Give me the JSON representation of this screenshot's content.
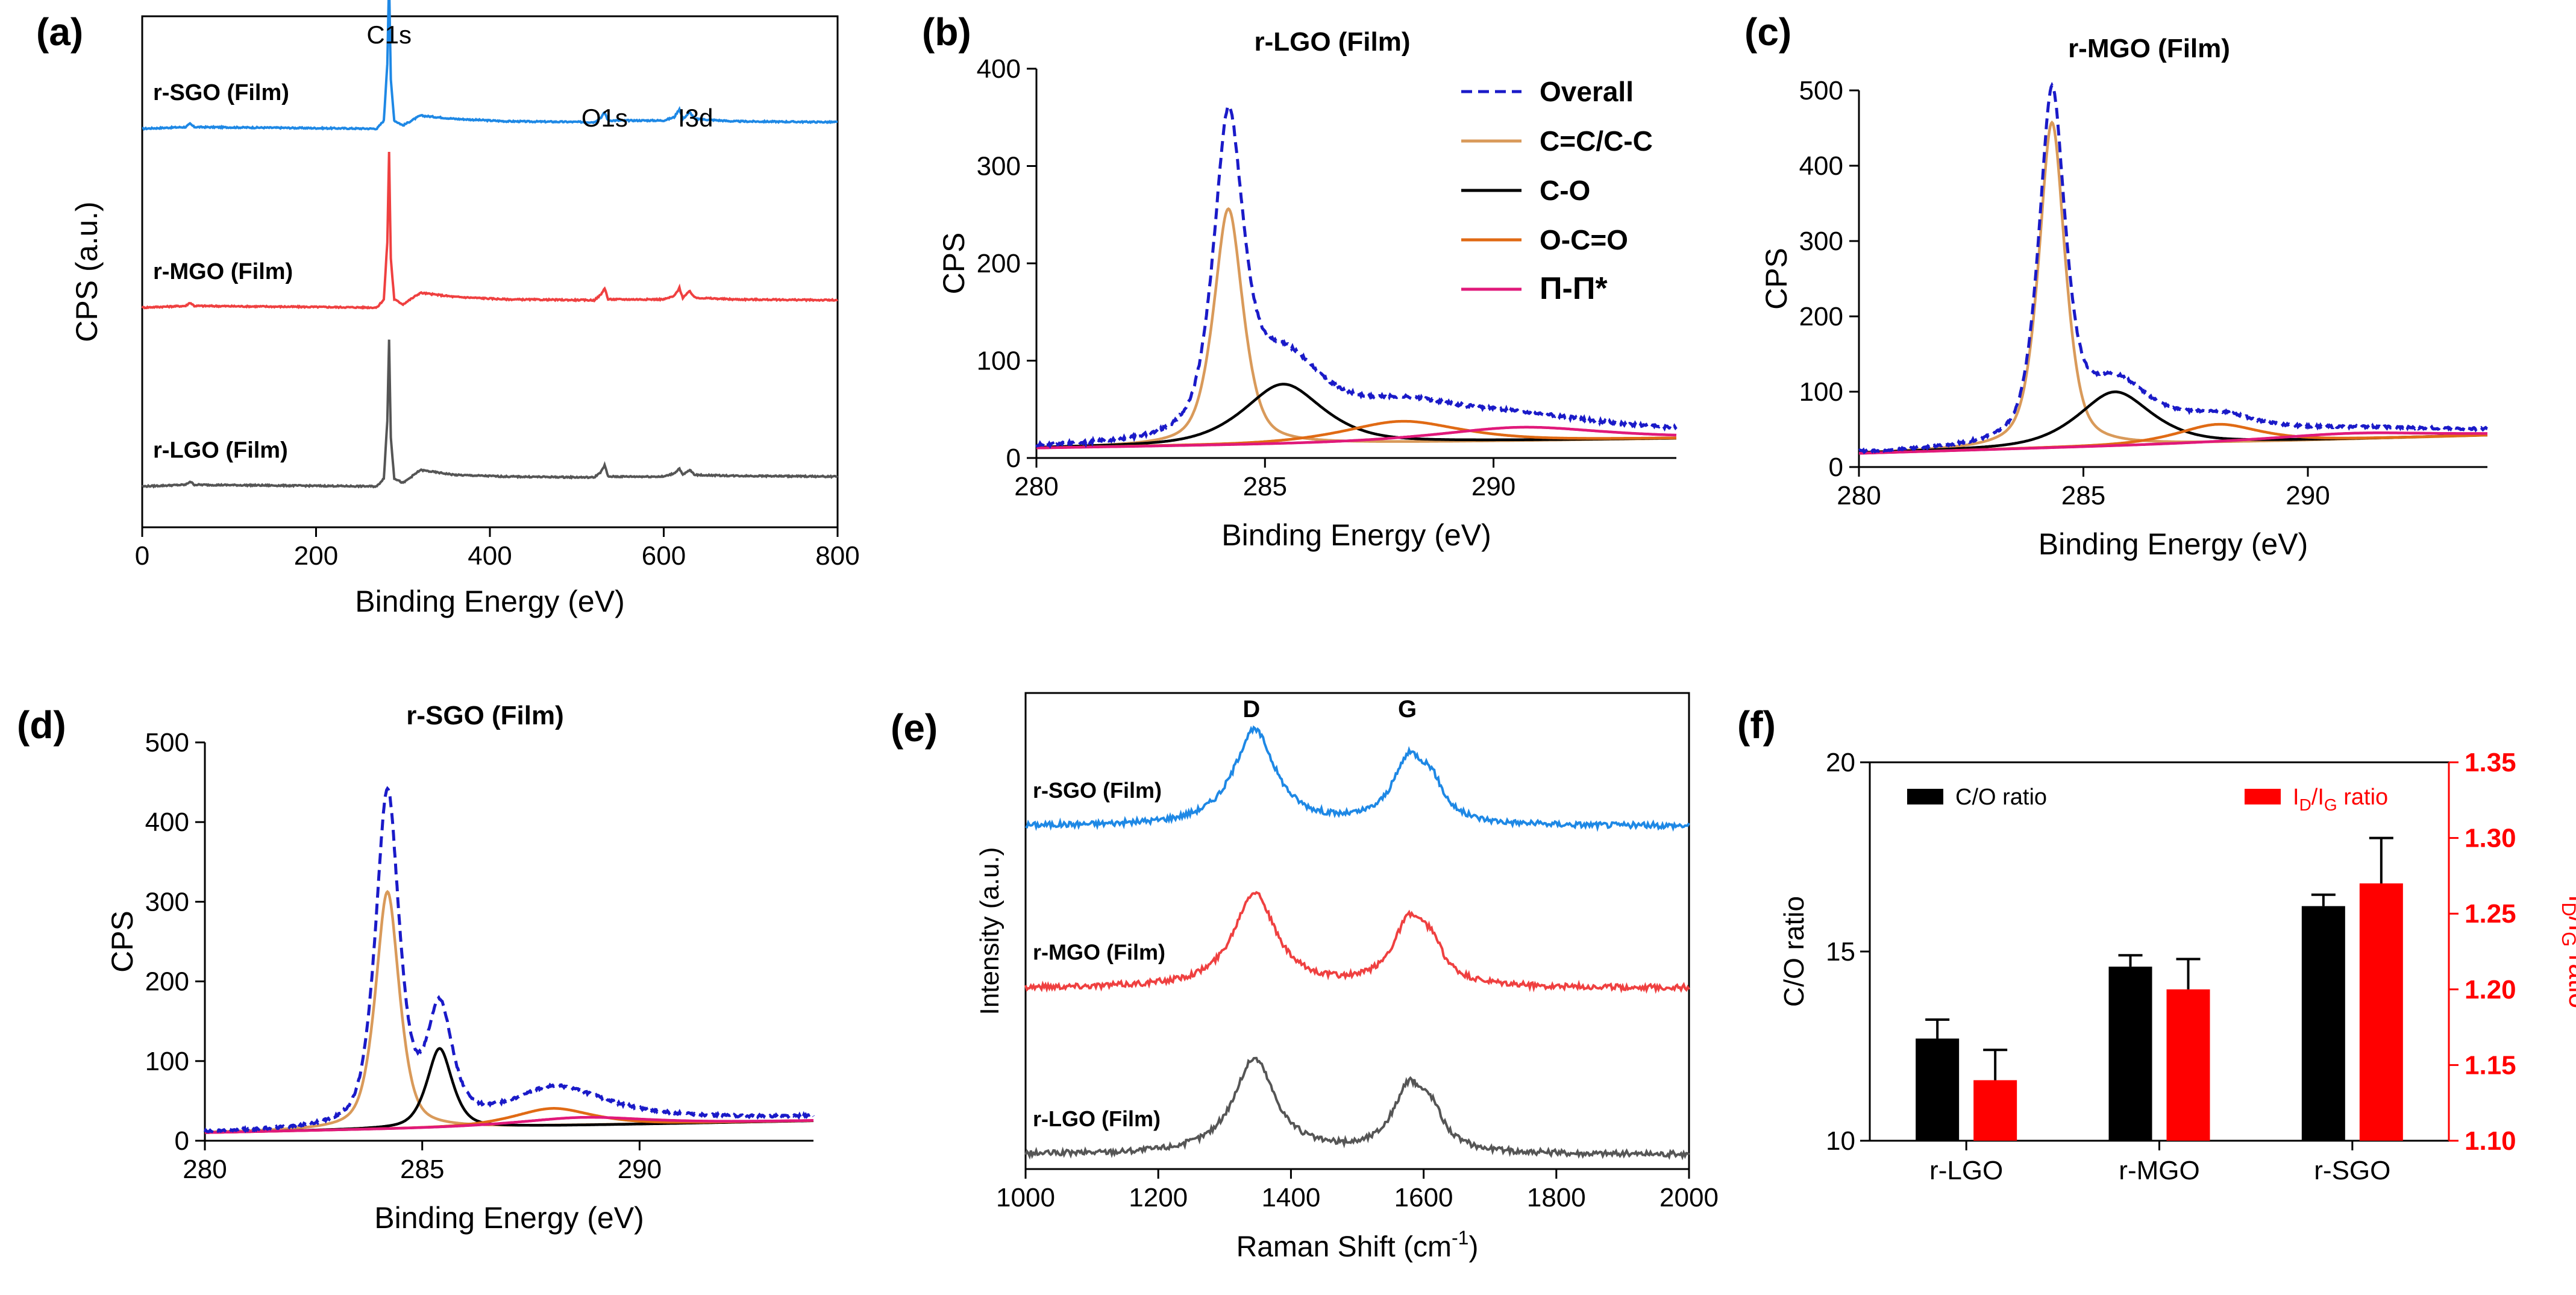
{
  "colors": {
    "blue": "#1e88e5",
    "red": "#ef4040",
    "gray": "#555555",
    "dashed": "#1a1ac8",
    "cc": "#d99a5a",
    "co": "#000000",
    "oco": "#e06a14",
    "pipi": "#e0197a",
    "bar_red": "#ff0000"
  },
  "chart_data": [
    {
      "id": "a",
      "panel_label": "(a)",
      "type": "line",
      "title": "",
      "xlabel": "Binding Energy (eV)",
      "ylabel": "CPS (a.u.)",
      "xlim": [
        0,
        800
      ],
      "xticks": [
        0,
        200,
        400,
        600,
        800
      ],
      "peak_labels": [
        {
          "text": "C1s",
          "x": 284
        },
        {
          "text": "O1s",
          "x": 532
        },
        {
          "text": "I3d",
          "x": 620
        }
      ],
      "series": [
        {
          "name": "r-SGO (Film)",
          "color": "blue",
          "offset": 0.78,
          "points": [
            [
              0,
              0.0
            ],
            [
              50,
              0.01
            ],
            [
              55,
              0.03
            ],
            [
              60,
              0.01
            ],
            [
              270,
              0.0
            ],
            [
              278,
              0.05
            ],
            [
              282,
              0.4
            ],
            [
              284,
              0.92
            ],
            [
              286,
              0.3
            ],
            [
              290,
              0.05
            ],
            [
              300,
              0.02
            ],
            [
              320,
              0.08
            ],
            [
              360,
              0.06
            ],
            [
              420,
              0.045
            ],
            [
              520,
              0.04
            ],
            [
              528,
              0.07
            ],
            [
              532,
              0.1
            ],
            [
              536,
              0.05
            ],
            [
              600,
              0.05
            ],
            [
              612,
              0.07
            ],
            [
              618,
              0.12
            ],
            [
              622,
              0.06
            ],
            [
              630,
              0.1
            ],
            [
              636,
              0.06
            ],
            [
              680,
              0.045
            ],
            [
              800,
              0.04
            ]
          ]
        },
        {
          "name": "r-MGO (Film)",
          "color": "red",
          "offset": 0.43,
          "points": [
            [
              0,
              0.0
            ],
            [
              50,
              0.01
            ],
            [
              55,
              0.03
            ],
            [
              60,
              0.01
            ],
            [
              270,
              0.0
            ],
            [
              278,
              0.05
            ],
            [
              282,
              0.4
            ],
            [
              284,
              0.95
            ],
            [
              286,
              0.3
            ],
            [
              290,
              0.05
            ],
            [
              300,
              0.02
            ],
            [
              320,
              0.09
            ],
            [
              360,
              0.065
            ],
            [
              420,
              0.05
            ],
            [
              520,
              0.045
            ],
            [
              528,
              0.08
            ],
            [
              532,
              0.12
            ],
            [
              536,
              0.05
            ],
            [
              600,
              0.05
            ],
            [
              612,
              0.07
            ],
            [
              618,
              0.12
            ],
            [
              622,
              0.06
            ],
            [
              630,
              0.1
            ],
            [
              636,
              0.06
            ],
            [
              680,
              0.05
            ],
            [
              800,
              0.045
            ]
          ]
        },
        {
          "name": "r-LGO (Film)",
          "color": "gray",
          "offset": 0.08,
          "points": [
            [
              0,
              0.0
            ],
            [
              50,
              0.01
            ],
            [
              55,
              0.03
            ],
            [
              60,
              0.01
            ],
            [
              270,
              0.0
            ],
            [
              278,
              0.05
            ],
            [
              282,
              0.4
            ],
            [
              284,
              0.9
            ],
            [
              286,
              0.3
            ],
            [
              290,
              0.05
            ],
            [
              300,
              0.02
            ],
            [
              320,
              0.1
            ],
            [
              360,
              0.07
            ],
            [
              420,
              0.06
            ],
            [
              520,
              0.055
            ],
            [
              528,
              0.09
            ],
            [
              532,
              0.13
            ],
            [
              536,
              0.06
            ],
            [
              600,
              0.06
            ],
            [
              612,
              0.08
            ],
            [
              618,
              0.11
            ],
            [
              622,
              0.07
            ],
            [
              630,
              0.1
            ],
            [
              636,
              0.07
            ],
            [
              680,
              0.065
            ],
            [
              800,
              0.06
            ]
          ]
        }
      ]
    },
    {
      "id": "b",
      "panel_label": "(b)",
      "type": "line",
      "title": "r-LGO (Film)",
      "xlabel": "Binding Energy (eV)",
      "ylabel": "CPS",
      "xlim": [
        280,
        294
      ],
      "ylim": [
        0,
        400
      ],
      "xticks": [
        280,
        285,
        290
      ],
      "yticks": [
        0,
        100,
        200,
        300,
        400
      ],
      "legend": {
        "position": "top-right",
        "entries": [
          {
            "name": "Overall",
            "color": "dashed",
            "dashed": true
          },
          {
            "name": "C=C/C-C",
            "color": "cc"
          },
          {
            "name": "C-O",
            "color": "co"
          },
          {
            "name": "O-C=O",
            "color": "oco"
          },
          {
            "name": "Π-Π*",
            "color": "pipi"
          }
        ]
      },
      "base": 10,
      "components": [
        {
          "name": "C=C/C-C",
          "center": 284.2,
          "amp": 243,
          "width": 0.35,
          "color": "cc",
          "baseline": [
            10,
            20
          ]
        },
        {
          "name": "C-O",
          "center": 285.4,
          "amp": 62,
          "width": 0.95,
          "color": "co",
          "baseline": [
            10,
            20
          ]
        },
        {
          "name": "O-C=O",
          "center": 288.0,
          "amp": 22,
          "width": 1.4,
          "color": "oco",
          "baseline": [
            10,
            20
          ]
        },
        {
          "name": "Π-Π*",
          "center": 290.6,
          "amp": 14,
          "width": 2.0,
          "color": "pipi",
          "baseline": [
            10,
            20
          ]
        }
      ],
      "overall_peak": 358
    },
    {
      "id": "c",
      "panel_label": "(c)",
      "type": "line",
      "title": "r-MGO (Film)",
      "xlabel": "Binding Energy (eV)",
      "ylabel": "CPS",
      "xlim": [
        280,
        294
      ],
      "ylim": [
        0,
        500
      ],
      "xticks": [
        280,
        285,
        290
      ],
      "yticks": [
        0,
        100,
        200,
        300,
        400,
        500
      ],
      "base": 18,
      "components": [
        {
          "name": "C=C/C-C",
          "center": 284.3,
          "amp": 432,
          "width": 0.32,
          "color": "cc",
          "baseline": [
            18,
            42
          ]
        },
        {
          "name": "C-O",
          "center": 285.7,
          "amp": 72,
          "width": 0.9,
          "color": "co",
          "baseline": [
            18,
            42
          ]
        },
        {
          "name": "O-C=O",
          "center": 288.0,
          "amp": 25,
          "width": 1.0,
          "color": "oco",
          "baseline": [
            18,
            42
          ]
        },
        {
          "name": "Π-Π*",
          "center": 291.0,
          "amp": 8,
          "width": 2.0,
          "color": "pipi",
          "baseline": [
            18,
            42
          ]
        }
      ],
      "overall_peak": 498
    },
    {
      "id": "d",
      "panel_label": "(d)",
      "type": "line",
      "title": "r-SGO (Film)",
      "xlabel": "Binding Energy (eV)",
      "ylabel": "CPS",
      "xlim": [
        280,
        294
      ],
      "ylim": [
        0,
        500
      ],
      "xticks": [
        280,
        285,
        290
      ],
      "yticks": [
        0,
        100,
        200,
        300,
        400,
        500
      ],
      "base": 10,
      "components": [
        {
          "name": "C=C/C-C",
          "center": 284.2,
          "amp": 298,
          "width": 0.3,
          "color": "cc",
          "baseline": [
            10,
            25
          ]
        },
        {
          "name": "C-O",
          "center": 285.4,
          "amp": 100,
          "width": 0.32,
          "color": "co",
          "baseline": [
            10,
            25
          ]
        },
        {
          "name": "O-C=O",
          "center": 288.0,
          "amp": 22,
          "width": 1.0,
          "color": "oco",
          "baseline": [
            10,
            25
          ]
        },
        {
          "name": "Π-Π*",
          "center": 288.7,
          "amp": 10,
          "width": 1.6,
          "color": "pipi",
          "baseline": [
            10,
            25
          ]
        }
      ],
      "overall_peak": 438
    },
    {
      "id": "e",
      "panel_label": "(e)",
      "type": "line",
      "title": "",
      "xlabel": "Raman Shift (cm",
      "xlabel_sup": "-1",
      "xlabel_end": ")",
      "ylabel": "Intensity (a.u.)",
      "xlim": [
        1000,
        2000
      ],
      "xticks": [
        1000,
        1200,
        1400,
        1600,
        1800,
        2000
      ],
      "peak_labels": [
        {
          "text": "D",
          "x": 1345
        },
        {
          "text": "G",
          "x": 1580
        }
      ],
      "series": [
        {
          "name": "r-SGO (Film)",
          "color": "blue",
          "offset": 0.72,
          "d_amp": 0.2,
          "g_amp": 0.175
        },
        {
          "name": "r-MGO (Film)",
          "color": "red",
          "offset": 0.38,
          "d_amp": 0.2,
          "g_amp": 0.175
        },
        {
          "name": "r-LGO (Film)",
          "color": "gray",
          "offset": 0.03,
          "d_amp": 0.2,
          "g_amp": 0.175
        }
      ]
    },
    {
      "id": "f",
      "panel_label": "(f)",
      "type": "bar",
      "categories": [
        "r-LGO",
        "r-MGO",
        "r-SGO"
      ],
      "ylabel_left": "C/O ratio",
      "ylabel_right_parts": [
        "I",
        "D",
        "/I",
        "G",
        " ratio"
      ],
      "ylim_left": [
        10,
        20
      ],
      "yticks_left": [
        10,
        15,
        20
      ],
      "ylim_right": [
        1.1,
        1.35
      ],
      "yticks_right": [
        "1.10",
        "1.15",
        "1.20",
        "1.25",
        "1.30",
        "1.35"
      ],
      "legend_left": "C/O ratio",
      "legend_right_parts": [
        "I",
        "D",
        "/I",
        "G",
        " ratio"
      ],
      "series": [
        {
          "name": "C/O ratio",
          "axis": "left",
          "color": "co",
          "values": [
            12.7,
            14.6,
            16.2
          ],
          "errors": [
            0.5,
            0.3,
            0.3
          ]
        },
        {
          "name": "ID/IG ratio",
          "axis": "right",
          "color": "bar_red",
          "values": [
            1.14,
            1.2,
            1.27
          ],
          "errors": [
            0.02,
            0.02,
            0.03
          ]
        }
      ]
    }
  ]
}
